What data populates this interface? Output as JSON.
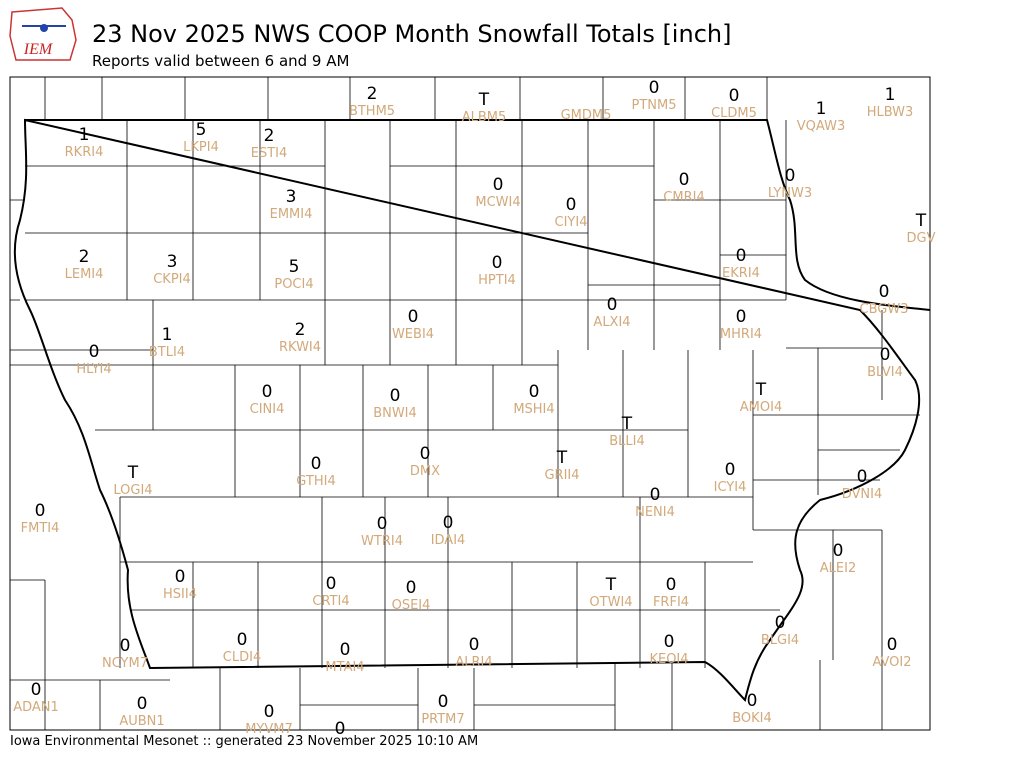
{
  "header": {
    "logo": "IEM",
    "title": "23 Nov 2025 NWS COOP Month Snowfall Totals [inch]",
    "subtitle": "Reports valid between 6 and 9 AM"
  },
  "footer": "Iowa Environmental Mesonet :: generated 23 November 2025 10:10 AM",
  "stations": [
    {
      "value": 2,
      "id": "BTHM5"
    },
    {
      "value": "T",
      "id": "ALBM5"
    },
    {
      "id": "GMDM5"
    },
    {
      "value": 0,
      "id": "PTNM5"
    },
    {
      "value": 0,
      "id": "CLDM5"
    },
    {
      "value": 1,
      "id": "HLBW3"
    },
    {
      "value": 1,
      "id": "VQAW3"
    },
    {
      "value": 1,
      "id": "RKRI4"
    },
    {
      "value": 5,
      "id": "LKPI4"
    },
    {
      "value": 2,
      "id": "ESTI4"
    },
    {
      "value": 3,
      "id": "EMMI4"
    },
    {
      "value": 0,
      "id": "MCWI4"
    },
    {
      "value": 0,
      "id": "CIYI4"
    },
    {
      "value": 0,
      "id": "CMRI4"
    },
    {
      "value": 0,
      "id": "LYNW3"
    },
    {
      "value": "T",
      "id": "DGV"
    },
    {
      "value": 2,
      "id": "LEMI4"
    },
    {
      "value": 3,
      "id": "CKPI4"
    },
    {
      "value": 5,
      "id": "POCI4"
    },
    {
      "value": 0,
      "id": "HPTI4"
    },
    {
      "value": 0,
      "id": "EKRI4"
    },
    {
      "value": 0,
      "id": "CBGW3"
    },
    {
      "value": 0,
      "id": "ALXI4"
    },
    {
      "value": 0,
      "id": "MHRI4"
    },
    {
      "value": 0,
      "id": "WEBI4"
    },
    {
      "value": 2,
      "id": "RKWI4"
    },
    {
      "value": 1,
      "id": "BTLI4"
    },
    {
      "value": 0,
      "id": "HLYI4"
    },
    {
      "value": 0,
      "id": "BLVI4"
    },
    {
      "value": 0,
      "id": "CINI4"
    },
    {
      "value": 0,
      "id": "BNWI4"
    },
    {
      "value": 0,
      "id": "MSHI4"
    },
    {
      "value": "T",
      "id": "AMOI4"
    },
    {
      "value": "T",
      "id": "BLLI4"
    },
    {
      "value": 0,
      "id": "DMX"
    },
    {
      "value": 0,
      "id": "GTHI4"
    },
    {
      "value": "T",
      "id": "GRII4"
    },
    {
      "value": 0,
      "id": "ICYI4"
    },
    {
      "value": "T",
      "id": "LOGI4"
    },
    {
      "value": 0,
      "id": "DVNI4"
    },
    {
      "value": 0,
      "id": "NENI4"
    },
    {
      "value": 0,
      "id": "FMTI4"
    },
    {
      "value": 0,
      "id": "WTRI4"
    },
    {
      "value": 0,
      "id": "IDAI4"
    },
    {
      "value": 0,
      "id": "ALEI2"
    },
    {
      "value": 0,
      "id": "HSII4"
    },
    {
      "value": 0,
      "id": "CRTI4"
    },
    {
      "value": 0,
      "id": "OSEI4"
    },
    {
      "value": "T",
      "id": "OTWI4"
    },
    {
      "value": 0,
      "id": "FRFI4"
    },
    {
      "value": 0,
      "id": "BLGI4"
    },
    {
      "value": 0,
      "id": "NCYM7"
    },
    {
      "value": 0,
      "id": "CLDI4"
    },
    {
      "value": 0,
      "id": "MTAI4"
    },
    {
      "value": 0,
      "id": "ALRI4"
    },
    {
      "value": 0,
      "id": "KEOI4"
    },
    {
      "value": 0,
      "id": "AVOI2"
    },
    {
      "value": 0,
      "id": "ADAN1"
    },
    {
      "value": 0,
      "id": "AUBN1"
    },
    {
      "value": 0,
      "id": "MYVM7"
    },
    {
      "value": 0,
      "id": "PRTM7"
    },
    {
      "value": 0,
      "id": "BOKI4"
    },
    {
      "value": 0
    }
  ]
}
